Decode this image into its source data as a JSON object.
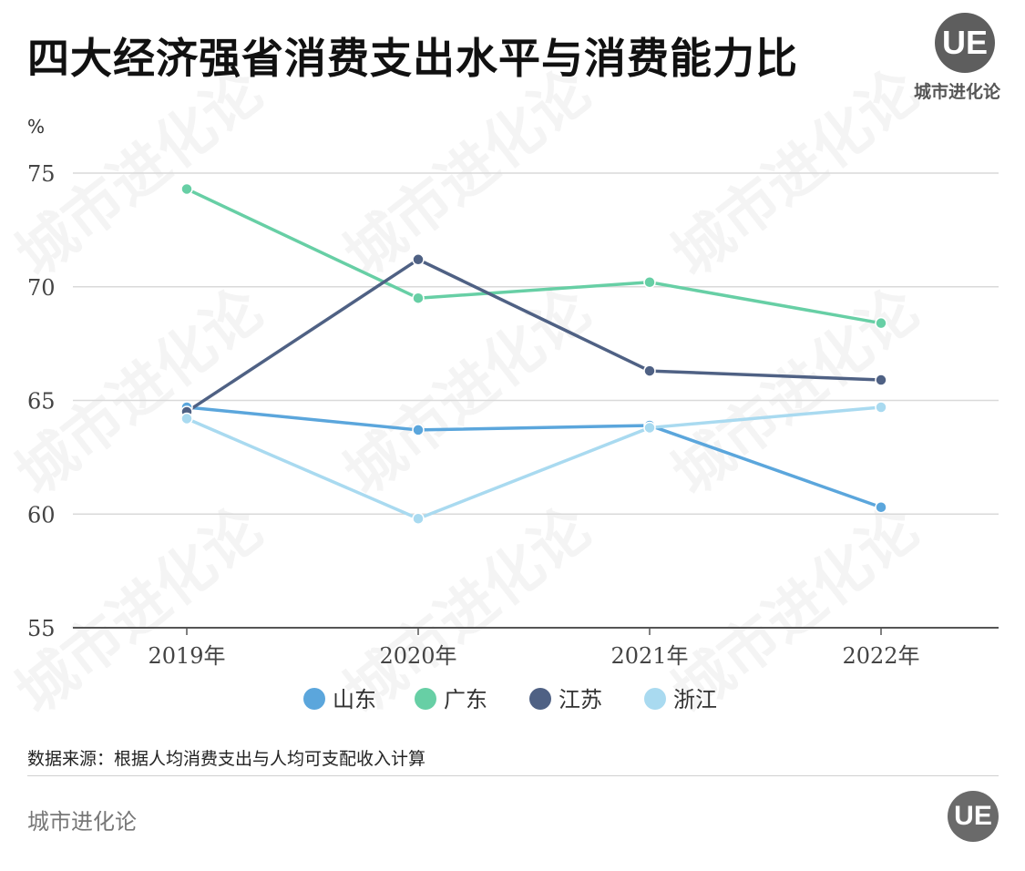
{
  "header": {
    "title": "四大经济强省消费支出水平与消费能力比"
  },
  "brand": {
    "logo_mark": "UE",
    "name": "城市进化论",
    "watermark": "城市进化论"
  },
  "source_note": "数据来源：根据人均消费支出与人均可支配收入计算",
  "chart_data": {
    "type": "line",
    "title": "四大经济强省消费支出水平与消费能力比",
    "ylabel": "%",
    "xlabel": "",
    "categories": [
      "2019年",
      "2020年",
      "2021年",
      "2022年"
    ],
    "ylim": [
      55,
      75
    ],
    "yticks": [
      55,
      60,
      65,
      70,
      75
    ],
    "grid": true,
    "legend_position": "bottom",
    "series": [
      {
        "name": "山东",
        "color": "#5ba6dc",
        "values": [
          64.7,
          63.7,
          63.9,
          60.3
        ]
      },
      {
        "name": "广东",
        "color": "#67cfa5",
        "values": [
          74.3,
          69.5,
          70.2,
          68.4
        ]
      },
      {
        "name": "江苏",
        "color": "#4f6184",
        "values": [
          64.5,
          71.2,
          66.3,
          65.9
        ]
      },
      {
        "name": "浙江",
        "color": "#a9daf0",
        "values": [
          64.2,
          59.8,
          63.8,
          64.7
        ]
      }
    ]
  }
}
